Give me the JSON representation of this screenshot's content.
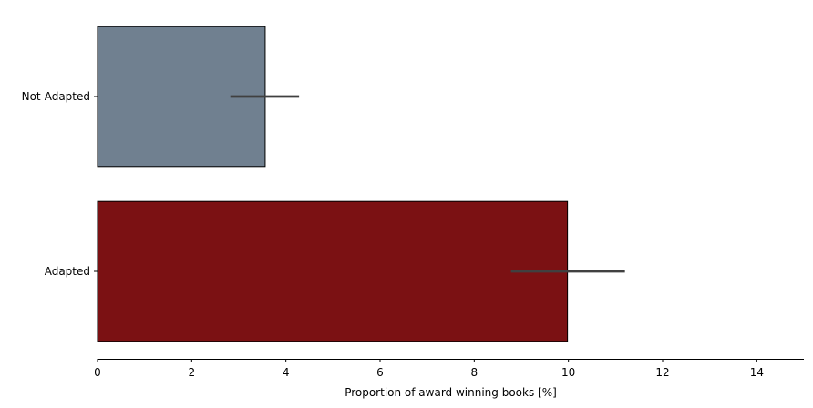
{
  "chart_data": {
    "type": "bar",
    "orientation": "horizontal",
    "categories": [
      "Not-Adapted",
      "Adapted"
    ],
    "values": [
      3.56,
      9.98
    ],
    "error_low": [
      2.82,
      8.78
    ],
    "error_high": [
      4.28,
      11.2
    ],
    "colors": [
      "#708090",
      "#7b1113"
    ],
    "errorbar_color": "#404040",
    "title": "",
    "xlabel": "Proportion of award winning books [%]",
    "ylabel": "",
    "xlim": [
      0,
      15
    ],
    "xticks": [
      0,
      2,
      4,
      6,
      8,
      10,
      12,
      14
    ],
    "grid": false,
    "legend": false
  }
}
